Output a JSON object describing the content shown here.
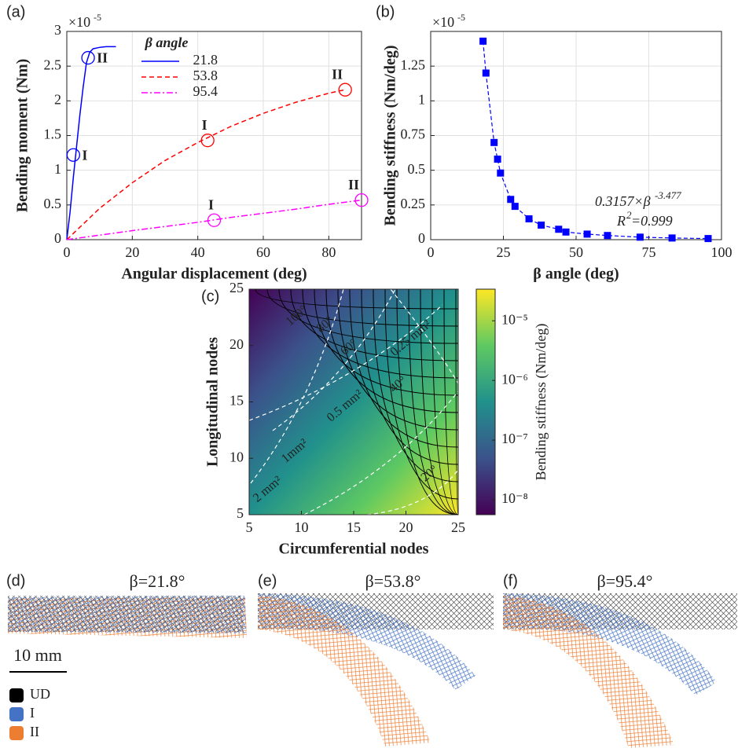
{
  "chart_data": [
    {
      "type": "line",
      "xlabel": "Angular displacement (deg)",
      "ylabel": "Bending moment (Nm)",
      "multiplier": {
        "base": "×10",
        "exponent": "-5"
      },
      "xlim": [
        0,
        90
      ],
      "xticks": [
        0,
        20,
        40,
        60,
        80
      ],
      "ylim": [
        0,
        3
      ],
      "yticks": [
        0,
        0.5,
        1,
        1.5,
        2,
        2.5,
        3
      ],
      "grid": true,
      "legend_title": "β angle",
      "series": [
        {
          "name": "21.8",
          "color": "#0000ff",
          "dash": "solid",
          "x": [
            0,
            1,
            2,
            3,
            4,
            5,
            6,
            7,
            8,
            10,
            12,
            15
          ],
          "values": [
            0,
            0.4,
            0.9,
            1.35,
            1.8,
            2.2,
            2.55,
            2.7,
            2.75,
            2.77,
            2.78,
            2.78
          ]
        },
        {
          "name": "53.8",
          "color": "#ff0000",
          "dash": "dashed",
          "x": [
            0,
            10,
            20,
            30,
            40,
            50,
            60,
            70,
            80,
            85
          ],
          "values": [
            0,
            0.45,
            0.82,
            1.14,
            1.4,
            1.63,
            1.82,
            1.98,
            2.11,
            2.16
          ]
        },
        {
          "name": "95.4",
          "color": "#ff00ff",
          "dash": "dashdot",
          "x": [
            0,
            10,
            20,
            30,
            40,
            50,
            60,
            70,
            80,
            90
          ],
          "values": [
            0,
            0.065,
            0.13,
            0.19,
            0.25,
            0.32,
            0.38,
            0.44,
            0.51,
            0.57
          ]
        }
      ],
      "annotations": [
        {
          "text": "I",
          "x": 2,
          "y": 1.22,
          "color": "#0000ff"
        },
        {
          "text": "II",
          "x": 6.5,
          "y": 2.62,
          "color": "#0000ff"
        },
        {
          "text": "I",
          "x": 43,
          "y": 1.43,
          "color": "#ff0000"
        },
        {
          "text": "II",
          "x": 85,
          "y": 2.16,
          "color": "#ff0000"
        },
        {
          "text": "I",
          "x": 45,
          "y": 0.28,
          "color": "#ff00ff"
        },
        {
          "text": "II",
          "x": 90,
          "y": 0.57,
          "color": "#ff00ff"
        }
      ]
    },
    {
      "type": "scatter",
      "xlabel": "β angle (deg)",
      "ylabel": "Bending stiffness (Nm/deg)",
      "multiplier": {
        "base": "×10",
        "exponent": "-5"
      },
      "xlim": [
        0,
        100
      ],
      "xticks": [
        0,
        25,
        50,
        75,
        100
      ],
      "ylim": [
        0,
        1.5
      ],
      "yticks": [
        0,
        0.25,
        0.5,
        0.75,
        1,
        1.25
      ],
      "grid": true,
      "color": "#0000ff",
      "x": [
        18,
        19,
        21.8,
        23,
        24,
        27.5,
        29,
        33.8,
        38,
        44,
        46.5,
        53.8,
        60.8,
        72,
        83,
        95.4
      ],
      "values": [
        1.43,
        1.2,
        0.7,
        0.58,
        0.48,
        0.29,
        0.24,
        0.15,
        0.105,
        0.075,
        0.055,
        0.04,
        0.03,
        0.018,
        0.012,
        0.008
      ],
      "fit_label": {
        "base": "0.3157×β",
        "exponent": "-3.477"
      },
      "r2_label": {
        "base": "R",
        "exponent": "2",
        "rest": "=0.999"
      }
    },
    {
      "type": "contour",
      "xlabel": "Circumferential nodes",
      "ylabel": "Longitudinal nodes",
      "xlim": [
        5,
        25
      ],
      "xticks": [
        5,
        10,
        15,
        20,
        25
      ],
      "ylim": [
        5,
        25
      ],
      "yticks": [
        5,
        10,
        15,
        20,
        25
      ],
      "grid": false,
      "colorbar_label": "Bending stiffness (Nm/deg)",
      "clim": [
        -8.25,
        -4.47
      ],
      "cticks": [
        {
          "value": -8,
          "label": "10⁻⁸"
        },
        {
          "value": -7,
          "label": "10⁻⁷"
        },
        {
          "value": -6,
          "label": "10⁻⁶"
        },
        {
          "value": -5,
          "label": "10⁻⁵"
        }
      ],
      "annotations": [
        {
          "text": "100°",
          "x": 9.6,
          "y": 22.6
        },
        {
          "text": "80°",
          "x": 12.3,
          "y": 21.8
        },
        {
          "text": "60°",
          "x": 14.6,
          "y": 19.8
        },
        {
          "text": "40°",
          "x": 19.3,
          "y": 16.5
        },
        {
          "text": "20°",
          "x": 22.3,
          "y": 8.6
        },
        {
          "text": "0.25 mm²",
          "x": 20.5,
          "y": 20.6
        },
        {
          "text": "0.5 mm²",
          "x": 14.2,
          "y": 14.6
        },
        {
          "text": "1mm²",
          "x": 9.4,
          "y": 10.6
        },
        {
          "text": "2 mm²",
          "x": 6.8,
          "y": 7.2
        }
      ]
    }
  ],
  "panel_labels": [
    "(a)",
    "(b)",
    "(c)",
    "(d)",
    "(e)",
    "(f)"
  ],
  "stent_titles": [
    "β=21.8°",
    "β=53.8°",
    "β=95.4°"
  ],
  "scale_bar": "10 mm",
  "legend": [
    {
      "name": "UD",
      "color": "#000000"
    },
    {
      "name": "I",
      "color": "#4472c4"
    },
    {
      "name": "II",
      "color": "#ed7d31"
    }
  ]
}
